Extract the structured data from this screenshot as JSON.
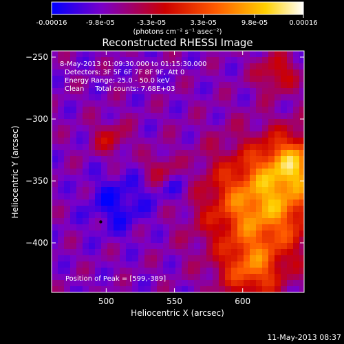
{
  "colorbar": {
    "tick_labels": [
      "-0.00016",
      "-9.8e-05",
      "-3.3e-05",
      "3.3e-05",
      "9.8e-05",
      "0.00016"
    ],
    "tick_values": [
      -0.00016,
      -9.8e-05,
      -3.3e-05,
      3.3e-05,
      9.8e-05,
      0.00016
    ],
    "min": -0.00016,
    "max": 0.00016,
    "unit_label": "(photons cm⁻² s⁻¹ asec⁻²)",
    "colors": [
      "#0000ff",
      "#7a00c8",
      "#cc0000",
      "#ff5a00",
      "#ffd000",
      "#ffffff"
    ]
  },
  "chart_data": {
    "type": "heatmap",
    "title": "Reconstructed RHESSI Image",
    "xlabel": "Heliocentric X (arcsec)",
    "ylabel": "Heliocentric Y (arcsec)",
    "xlim": [
      460,
      645
    ],
    "ylim": [
      -440,
      -245
    ],
    "xticks": [
      500,
      550,
      600
    ],
    "xtick_labels": [
      "500",
      "550",
      "600"
    ],
    "yticks": [
      -250,
      -300,
      -350,
      -400
    ],
    "ytick_labels": [
      "−250",
      "−300",
      "−350",
      "−400"
    ],
    "annotations": [
      "8-May-2013 01:09:30.000 to 01:15:30.000",
      "Detectors: 3F 5F 6F 7F 8F 9F, Att 0",
      "Energy Range: 25.0 - 50.0 keV",
      "Clean     Total counts: 7.68E+03"
    ],
    "peak_label": "Position of Peak = [599,-389]",
    "peak": [
      599,
      -389
    ],
    "marker": [
      496,
      -383
    ],
    "grid": false
  },
  "footer": {
    "timestamp": "11-May-2013 08:37"
  },
  "palette": {
    "background": "#000000",
    "text": "#ffffff"
  }
}
